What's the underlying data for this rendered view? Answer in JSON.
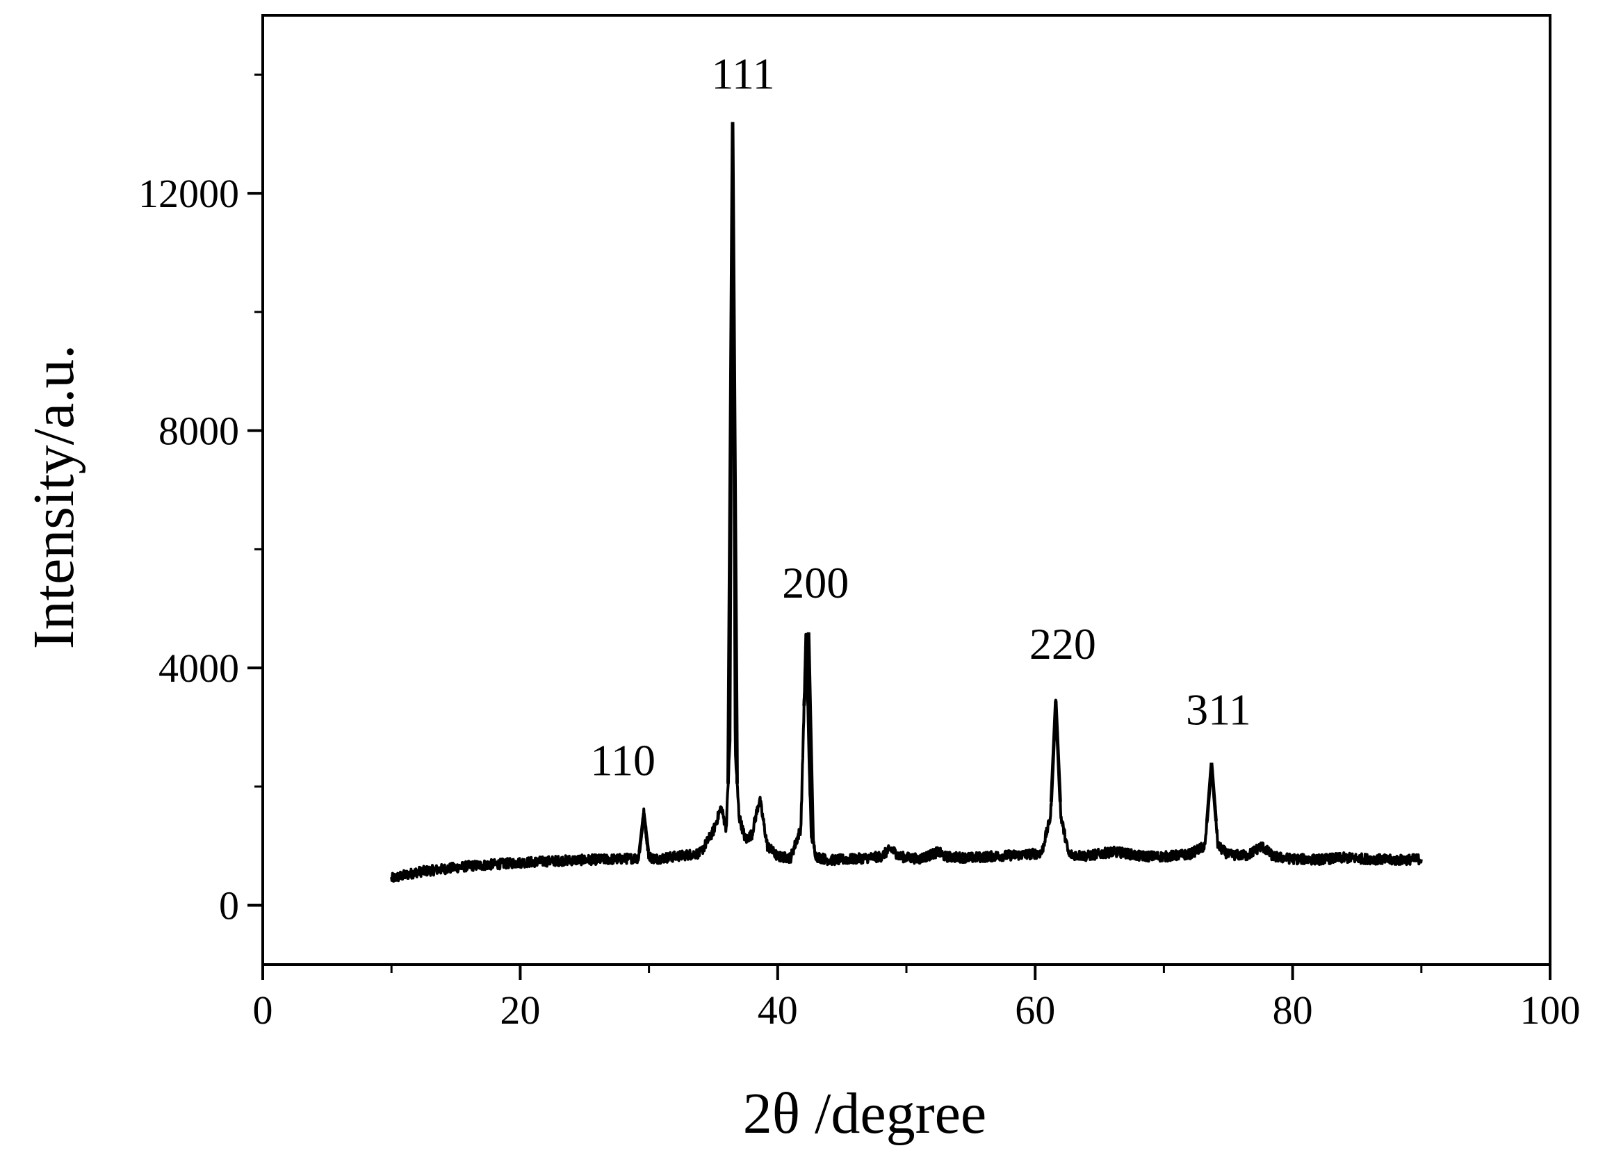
{
  "chart_data": {
    "type": "line",
    "title": "",
    "xlabel": "2θ /degree",
    "ylabel": "Intensity/a.u.",
    "xlim": [
      0,
      100
    ],
    "ylim": [
      -1000,
      15000
    ],
    "x_ticks": [
      0,
      20,
      40,
      60,
      80,
      100
    ],
    "x_tick_labels": [
      "0",
      "20",
      "40",
      "60",
      "80",
      "100"
    ],
    "y_ticks": [
      0,
      4000,
      8000,
      12000
    ],
    "y_tick_labels": [
      "0",
      "4000",
      "8000",
      "12000"
    ],
    "grid": false,
    "legend": "none",
    "line_color": "#000000",
    "series": [
      {
        "name": "",
        "x": [
          10,
          12,
          14,
          16,
          18,
          20,
          22,
          24,
          26,
          28,
          29.2,
          29.6,
          30.0,
          30.5,
          32,
          34,
          35.0,
          35.6,
          36.0,
          36.3,
          36.5,
          36.7,
          37.0,
          37.5,
          38.0,
          38.6,
          39.2,
          40.0,
          41.0,
          41.8,
          42.2,
          42.4,
          42.6,
          43.0,
          44,
          46,
          48,
          48.8,
          49.5,
          51,
          52.5,
          53,
          55,
          57,
          59,
          60.5,
          61.2,
          61.6,
          62.0,
          62.6,
          64,
          66,
          67,
          68,
          70,
          72,
          73.2,
          73.7,
          74.2,
          75,
          76.5,
          77.6,
          78.5,
          80,
          82,
          84,
          86,
          88,
          90
        ],
        "y": [
          450,
          560,
          610,
          660,
          690,
          720,
          740,
          760,
          770,
          780,
          800,
          1550,
          820,
          780,
          820,
          880,
          1250,
          1650,
          1300,
          2800,
          13200,
          2600,
          1500,
          1100,
          1200,
          1800,
          1000,
          820,
          800,
          1300,
          4600,
          2800,
          1200,
          820,
          760,
          780,
          820,
          950,
          820,
          780,
          900,
          820,
          800,
          830,
          850,
          880,
          1500,
          3450,
          1500,
          860,
          830,
          900,
          880,
          830,
          820,
          860,
          1000,
          2400,
          1000,
          850,
          840,
          1000,
          820,
          780,
          770,
          800,
          780,
          760,
          780
        ]
      }
    ],
    "annotations": [
      {
        "text": "110",
        "x": 29.6,
        "y": 1550
      },
      {
        "text": "111",
        "x": 36.5,
        "y": 13200
      },
      {
        "text": "200",
        "x": 42.4,
        "y": 4600
      },
      {
        "text": "220",
        "x": 61.6,
        "y": 3450
      },
      {
        "text": "311",
        "x": 73.7,
        "y": 2400
      }
    ]
  }
}
